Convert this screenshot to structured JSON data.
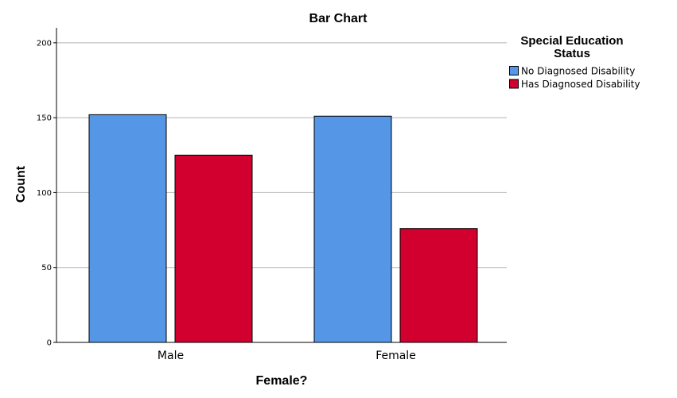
{
  "chart_data": {
    "type": "bar",
    "title": "Bar Chart",
    "xlabel": "Female?",
    "ylabel": "Count",
    "categories": [
      "Male",
      "Female"
    ],
    "series": [
      {
        "name": "No Diagnosed Disability",
        "values": [
          152,
          151
        ],
        "color": "#5596e6"
      },
      {
        "name": "Has Diagnosed Disability",
        "values": [
          125,
          76
        ],
        "color": "#d2002e"
      }
    ],
    "ylim": [
      0,
      210
    ],
    "yticks": [
      0,
      50,
      100,
      150,
      200
    ],
    "grid": true,
    "legend": {
      "title_lines": [
        "Special Education",
        "Status"
      ],
      "placement": "right"
    }
  }
}
